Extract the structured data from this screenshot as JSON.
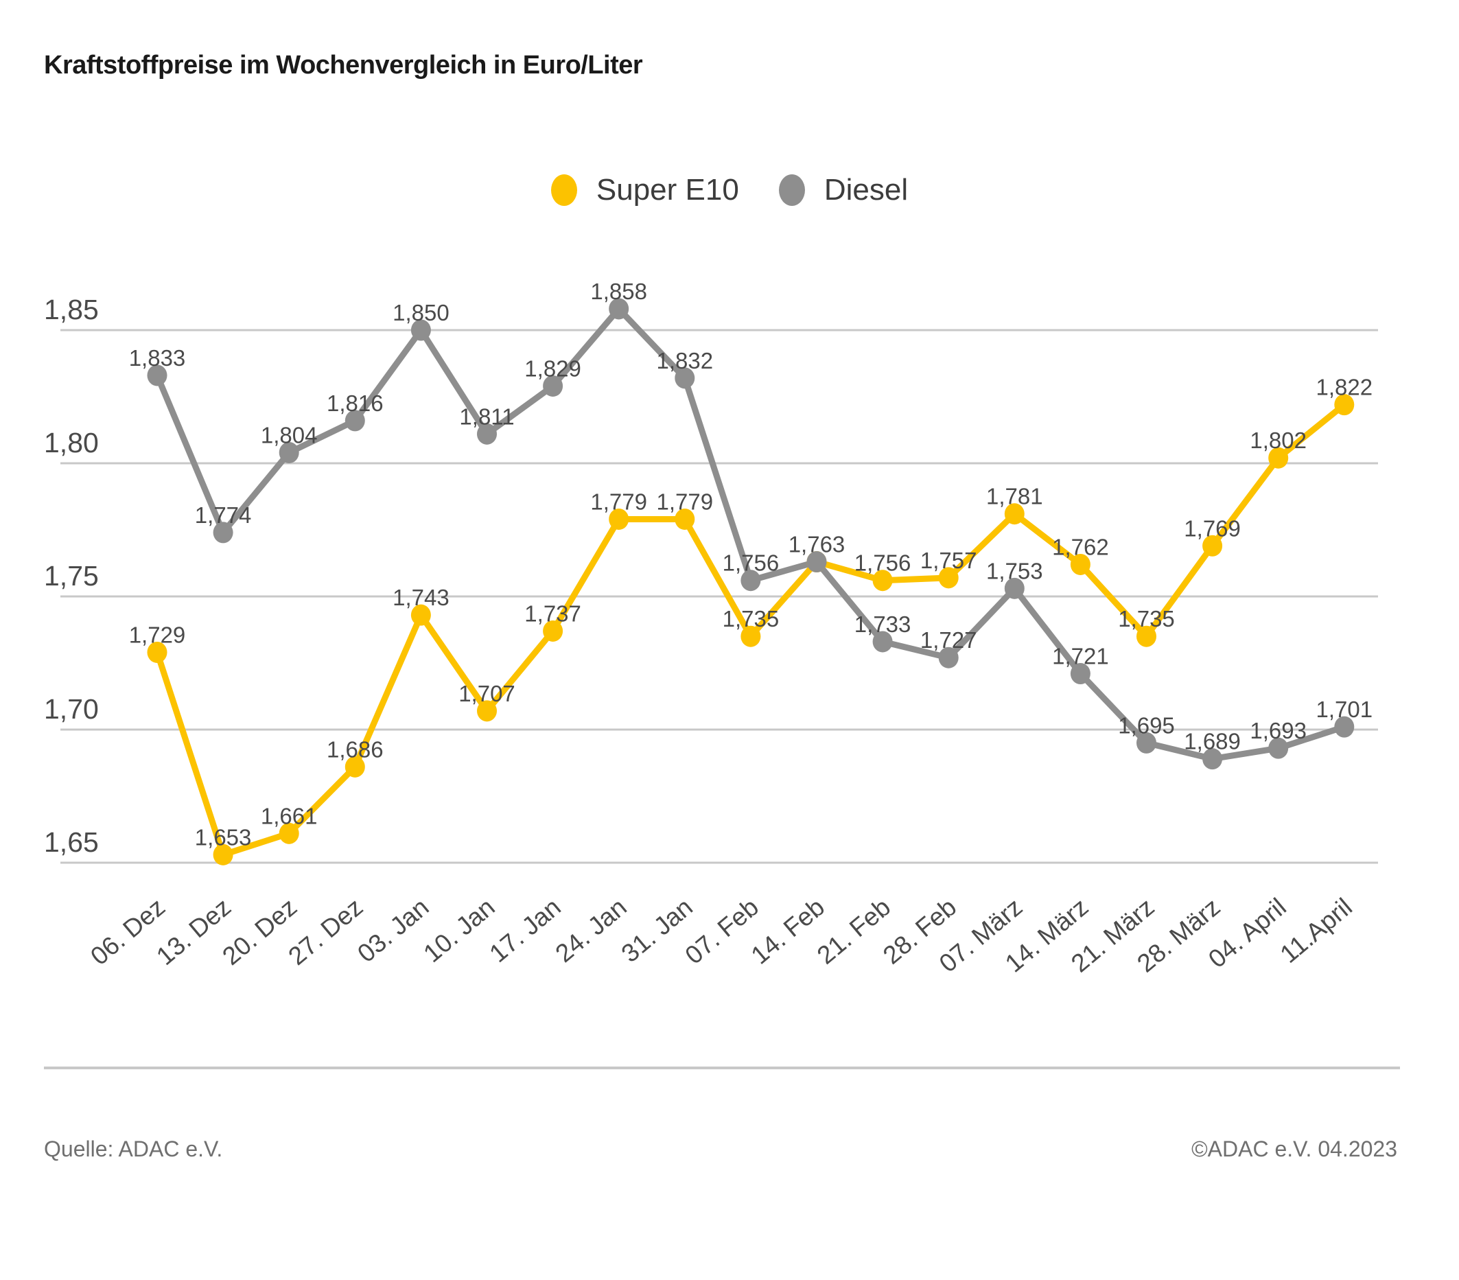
{
  "title": "Kraftstoffpreise im Wochenvergleich in Euro/Liter",
  "legend": {
    "items": [
      {
        "label": "Super E10",
        "color": "#FCC200"
      },
      {
        "label": "Diesel",
        "color": "#8E8E8E"
      }
    ]
  },
  "footer": {
    "source": "Quelle: ADAC e.V.",
    "copyright": "©ADAC e.V. 04.2023"
  },
  "colors": {
    "accent_yellow": "#FCC200",
    "accent_gray": "#8E8E8E",
    "grid": "#C8C8C8",
    "axis_text": "#4A4A4A",
    "value_text": "#4A4A4A",
    "title_text": "#1A1A1A",
    "footer_text": "#6F6F6F"
  },
  "chart_data": {
    "type": "line",
    "title": "Kraftstoffpreise im Wochenvergleich in Euro/Liter",
    "unit": "Euro/Liter",
    "categories": [
      "06. Dez",
      "13. Dez",
      "20. Dez",
      "27. Dez",
      "03. Jan",
      "10. Jan",
      "17. Jan",
      "24. Jan",
      "31. Jan",
      "07. Feb",
      "14. Feb",
      "21. Feb",
      "28. Feb",
      "07. März",
      "14. März",
      "21. März",
      "28. März",
      "04. April",
      "11.April"
    ],
    "series": [
      {
        "name": "Super E10",
        "color": "#FCC200",
        "values": [
          1.729,
          1.653,
          1.661,
          1.686,
          1.743,
          1.707,
          1.737,
          1.779,
          1.779,
          1.735,
          1.763,
          1.756,
          1.757,
          1.781,
          1.762,
          1.735,
          1.769,
          1.802,
          1.822
        ]
      },
      {
        "name": "Diesel",
        "color": "#8E8E8E",
        "values": [
          1.833,
          1.774,
          1.804,
          1.816,
          1.85,
          1.811,
          1.829,
          1.858,
          1.832,
          1.756,
          1.763,
          1.733,
          1.727,
          1.753,
          1.721,
          1.695,
          1.689,
          1.693,
          1.701
        ]
      }
    ],
    "yticks": [
      1.85,
      1.8,
      1.75,
      1.7,
      1.65
    ],
    "ylim": [
      1.638,
      1.878
    ],
    "xlabel": "",
    "ylabel": "",
    "grid": true,
    "legend_position": "top",
    "decimal_separator": ",",
    "point_labels": true
  }
}
